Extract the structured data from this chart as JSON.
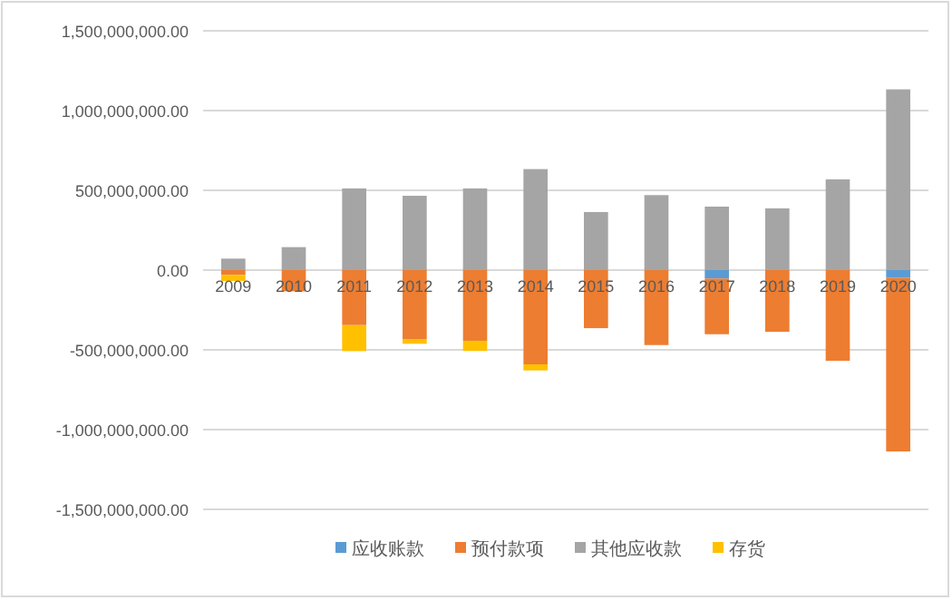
{
  "chart_data": {
    "type": "bar",
    "stacked": true,
    "categories": [
      "2009",
      "2010",
      "2011",
      "2012",
      "2013",
      "2014",
      "2015",
      "2016",
      "2017",
      "2018",
      "2019",
      "2020"
    ],
    "series": [
      {
        "name": "应收账款",
        "color": "#5b9bd5",
        "values": [
          0,
          0,
          0,
          0,
          0,
          0,
          0,
          0,
          -53000000,
          0,
          0,
          -49000000
        ]
      },
      {
        "name": "预付款项",
        "color": "#ed7d31",
        "values": [
          -30000000,
          -133000000,
          -345000000,
          -432000000,
          -443000000,
          -591000000,
          -364000000,
          -470000000,
          -349000000,
          -387000000,
          -569000000,
          -1088000000
        ]
      },
      {
        "name": "其他应收款",
        "color": "#a5a5a5",
        "values": [
          72000000,
          144000000,
          512000000,
          466000000,
          512000000,
          633000000,
          364000000,
          470000000,
          398000000,
          387000000,
          569000000,
          1133000000
        ]
      },
      {
        "name": "存货",
        "color": "#ffc000",
        "values": [
          -38000000,
          0,
          -163000000,
          -30000000,
          -64000000,
          -38000000,
          0,
          0,
          0,
          0,
          0,
          0
        ]
      }
    ],
    "ylim": [
      -1500000000,
      1500000000
    ],
    "yticks": [
      {
        "value": -1500000000,
        "label": "-1,500,000,000.00"
      },
      {
        "value": -1000000000,
        "label": "-1,000,000,000.00"
      },
      {
        "value": -500000000,
        "label": "-500,000,000.00"
      },
      {
        "value": 0,
        "label": "0.00"
      },
      {
        "value": 500000000,
        "label": "500,000,000.00"
      },
      {
        "value": 1000000000,
        "label": "1,000,000,000.00"
      },
      {
        "value": 1500000000,
        "label": "1,500,000,000.00"
      }
    ],
    "grid": "y",
    "legend": "bottom"
  }
}
